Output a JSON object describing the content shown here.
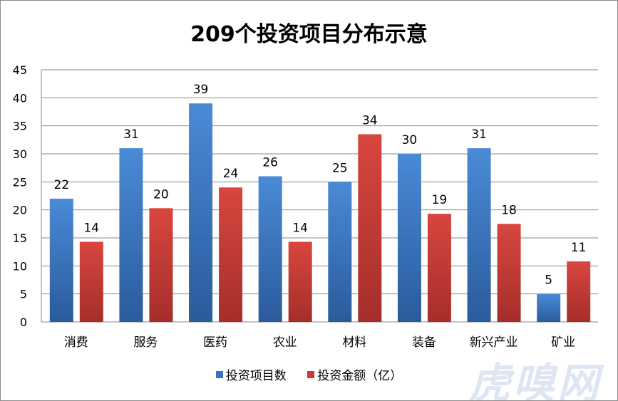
{
  "chart_data": {
    "type": "bar",
    "title": "209个投资项目分布示意",
    "categories": [
      "消费",
      "服务",
      "医药",
      "农业",
      "材料",
      "装备",
      "新兴产业",
      "矿业"
    ],
    "series": [
      {
        "name": "投资项目数",
        "color": "#3a74c2",
        "values": [
          22,
          31,
          39,
          26,
          25,
          30,
          31,
          5
        ],
        "labels": [
          "22",
          "31",
          "39",
          "26",
          "25",
          "30",
          "31",
          "5"
        ]
      },
      {
        "name": "投资金额（亿）",
        "color": "#c73a35",
        "values": [
          14.3,
          20.3,
          24,
          14.3,
          33.5,
          19.3,
          17.5,
          10.8
        ],
        "labels": [
          "14",
          "20",
          "24",
          "14",
          "34",
          "19",
          "18",
          "11"
        ]
      }
    ],
    "ylim": [
      0,
      45
    ],
    "yticks": [
      "0",
      "5",
      "10",
      "15",
      "20",
      "25",
      "30",
      "35",
      "40",
      "45"
    ],
    "grid": true,
    "legend_position": "bottom"
  },
  "watermark": "虎嗅网"
}
